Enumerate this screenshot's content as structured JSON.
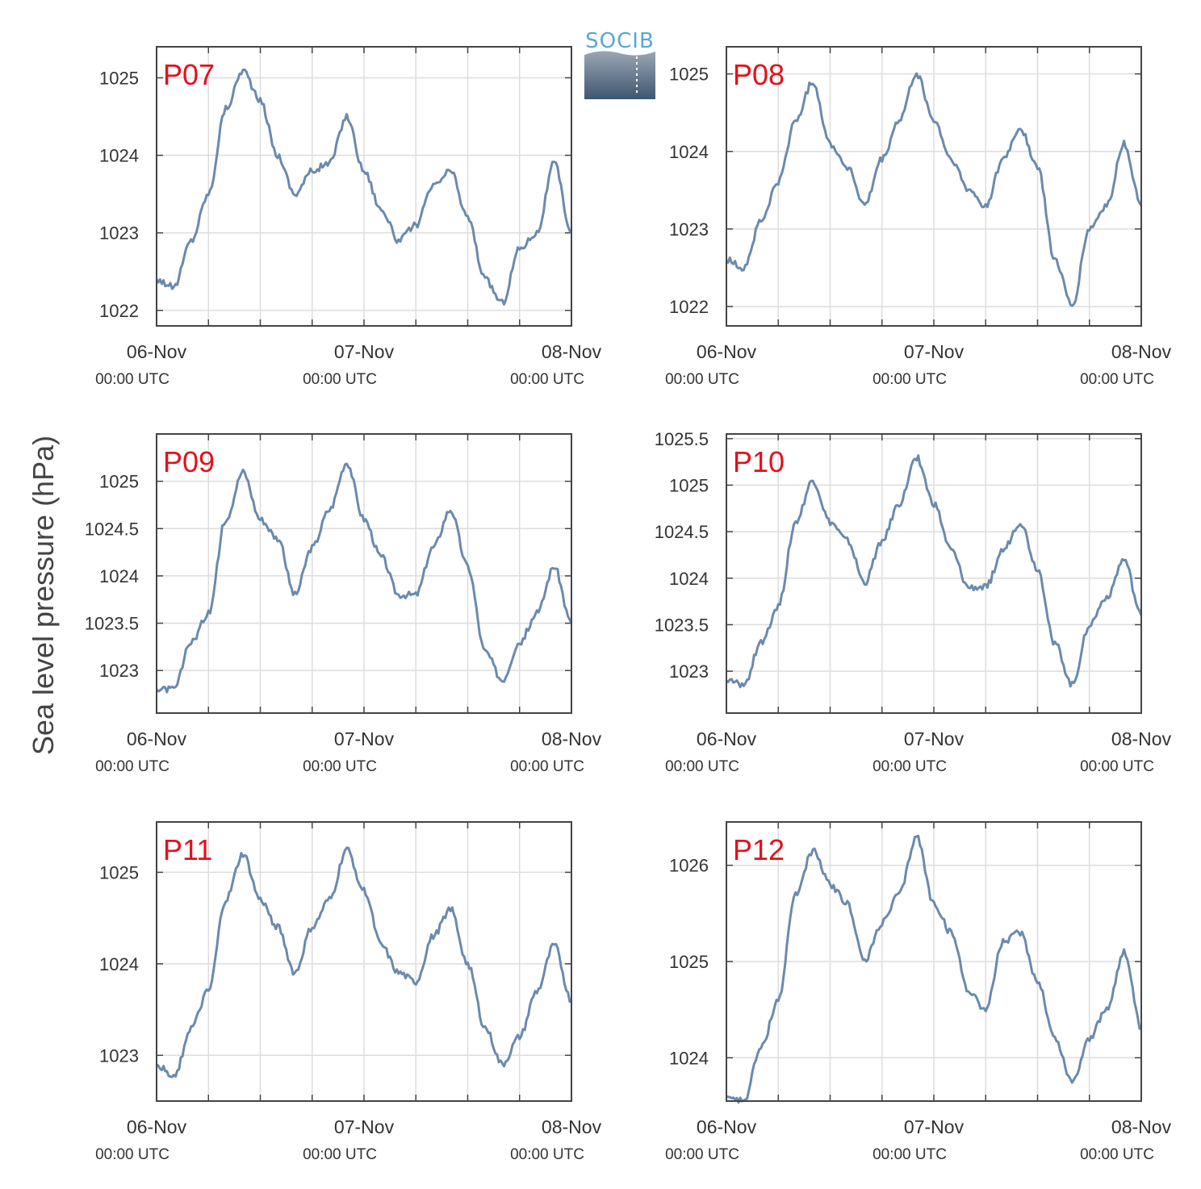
{
  "logo": {
    "text": "SOCIB"
  },
  "colors": {
    "line": "#6a8aad",
    "panel_label": "#e3101b",
    "grid": "#dddddd",
    "axis": "#444444"
  },
  "chart_data": [
    {
      "type": "line",
      "label": "P07",
      "ylabel": "Sea level pressure (hPa)",
      "x_ticks": [
        {
          "date": "06-Nov",
          "time": "00:00 UTC"
        },
        {
          "date": "07-Nov",
          "time": "00:00 UTC"
        },
        {
          "date": "08-Nov",
          "time": "00:00 UTC"
        }
      ],
      "yticks": [
        "1022",
        "1023",
        "1024",
        "1025"
      ],
      "ylim": [
        1021.8,
        1025.4
      ],
      "grid": true,
      "x_hours": [
        0,
        2,
        4,
        6,
        8,
        10,
        12,
        14,
        16,
        18,
        20,
        22,
        24,
        26,
        28,
        30,
        32,
        34,
        36,
        38,
        40,
        42,
        44,
        46,
        48
      ],
      "values": [
        1022.4,
        1022.3,
        1022.9,
        1023.5,
        1024.6,
        1025.1,
        1024.7,
        1024.0,
        1023.5,
        1023.8,
        1023.9,
        1024.5,
        1023.8,
        1023.3,
        1022.9,
        1023.1,
        1023.6,
        1023.8,
        1023.2,
        1022.4,
        1022.1,
        1022.8,
        1023.0,
        1023.9,
        1023.0
      ]
    },
    {
      "type": "line",
      "label": "P08",
      "x_ticks": [
        {
          "date": "06-Nov",
          "time": "00:00 UTC"
        },
        {
          "date": "07-Nov",
          "time": "00:00 UTC"
        },
        {
          "date": "08-Nov",
          "time": "00:00 UTC"
        }
      ],
      "yticks": [
        "1022",
        "1023",
        "1024",
        "1025"
      ],
      "ylim": [
        1021.75,
        1025.35
      ],
      "grid": true,
      "x_hours": [
        0,
        2,
        4,
        6,
        8,
        10,
        12,
        14,
        16,
        18,
        20,
        22,
        24,
        26,
        28,
        30,
        32,
        34,
        36,
        38,
        40,
        42,
        44,
        46,
        48
      ],
      "values": [
        1022.6,
        1022.5,
        1023.1,
        1023.6,
        1024.4,
        1024.9,
        1024.1,
        1023.8,
        1023.3,
        1023.9,
        1024.4,
        1025.0,
        1024.4,
        1023.9,
        1023.5,
        1023.3,
        1023.9,
        1024.3,
        1023.8,
        1022.6,
        1022.0,
        1023.0,
        1023.3,
        1024.1,
        1023.3
      ]
    },
    {
      "type": "line",
      "label": "P09",
      "x_ticks": [
        {
          "date": "06-Nov",
          "time": "00:00 UTC"
        },
        {
          "date": "07-Nov",
          "time": "00:00 UTC"
        },
        {
          "date": "08-Nov",
          "time": "00:00 UTC"
        }
      ],
      "yticks": [
        "1023",
        "1023.5",
        "1024",
        "1024.5",
        "1025"
      ],
      "ylim": [
        1022.55,
        1025.5
      ],
      "grid": true,
      "x_hours": [
        0,
        2,
        4,
        6,
        8,
        10,
        12,
        14,
        16,
        18,
        20,
        22,
        24,
        26,
        28,
        30,
        32,
        34,
        36,
        38,
        40,
        42,
        44,
        46,
        48
      ],
      "values": [
        1022.8,
        1022.8,
        1023.3,
        1023.6,
        1024.6,
        1025.1,
        1024.6,
        1024.4,
        1023.8,
        1024.3,
        1024.7,
        1025.2,
        1024.6,
        1024.2,
        1023.8,
        1023.8,
        1024.3,
        1024.7,
        1024.1,
        1023.2,
        1022.9,
        1023.3,
        1023.6,
        1024.1,
        1023.5
      ]
    },
    {
      "type": "line",
      "label": "P10",
      "x_ticks": [
        {
          "date": "06-Nov",
          "time": "00:00 UTC"
        },
        {
          "date": "07-Nov",
          "time": "00:00 UTC"
        },
        {
          "date": "08-Nov",
          "time": "00:00 UTC"
        }
      ],
      "yticks": [
        "1023",
        "1023.5",
        "1024",
        "1024.5",
        "1025",
        "1025.5"
      ],
      "ylim": [
        1022.55,
        1025.55
      ],
      "grid": true,
      "x_hours": [
        0,
        2,
        4,
        6,
        8,
        10,
        12,
        14,
        16,
        18,
        20,
        22,
        24,
        26,
        28,
        30,
        32,
        34,
        36,
        38,
        40,
        42,
        44,
        46,
        48
      ],
      "values": [
        1022.9,
        1022.85,
        1023.3,
        1023.7,
        1024.6,
        1025.05,
        1024.6,
        1024.4,
        1023.95,
        1024.4,
        1024.8,
        1025.3,
        1024.8,
        1024.3,
        1023.9,
        1023.9,
        1024.3,
        1024.6,
        1024.1,
        1023.3,
        1022.85,
        1023.5,
        1023.8,
        1024.2,
        1023.6
      ]
    },
    {
      "type": "line",
      "label": "P11",
      "x_ticks": [
        {
          "date": "06-Nov",
          "time": "00:00 UTC"
        },
        {
          "date": "07-Nov",
          "time": "00:00 UTC"
        },
        {
          "date": "08-Nov",
          "time": "00:00 UTC"
        }
      ],
      "yticks": [
        "1023",
        "1024",
        "1025"
      ],
      "ylim": [
        1022.5,
        1025.55
      ],
      "grid": true,
      "x_hours": [
        0,
        2,
        4,
        6,
        8,
        10,
        12,
        14,
        16,
        18,
        20,
        22,
        24,
        26,
        28,
        30,
        32,
        34,
        36,
        38,
        40,
        42,
        44,
        46,
        48
      ],
      "values": [
        1022.9,
        1022.75,
        1023.3,
        1023.7,
        1024.7,
        1025.2,
        1024.7,
        1024.4,
        1023.9,
        1024.4,
        1024.7,
        1025.25,
        1024.8,
        1024.2,
        1023.9,
        1023.8,
        1024.3,
        1024.6,
        1024.0,
        1023.3,
        1022.9,
        1023.2,
        1023.7,
        1024.2,
        1023.6
      ]
    },
    {
      "type": "line",
      "label": "P12",
      "x_ticks": [
        {
          "date": "06-Nov",
          "time": "00:00 UTC"
        },
        {
          "date": "07-Nov",
          "time": "00:00 UTC"
        },
        {
          "date": "08-Nov",
          "time": "00:00 UTC"
        }
      ],
      "yticks": [
        "1024",
        "1025",
        "1026"
      ],
      "ylim": [
        1023.55,
        1026.45
      ],
      "grid": true,
      "x_hours": [
        0,
        2,
        4,
        6,
        8,
        10,
        12,
        14,
        16,
        18,
        20,
        22,
        24,
        26,
        28,
        30,
        32,
        34,
        36,
        38,
        40,
        42,
        44,
        46,
        48
      ],
      "values": [
        1023.6,
        1023.55,
        1024.1,
        1024.6,
        1025.7,
        1026.15,
        1025.8,
        1025.6,
        1025.0,
        1025.4,
        1025.7,
        1026.3,
        1025.6,
        1025.3,
        1024.7,
        1024.5,
        1025.2,
        1025.3,
        1024.8,
        1024.2,
        1023.75,
        1024.2,
        1024.5,
        1025.1,
        1024.3
      ]
    }
  ]
}
